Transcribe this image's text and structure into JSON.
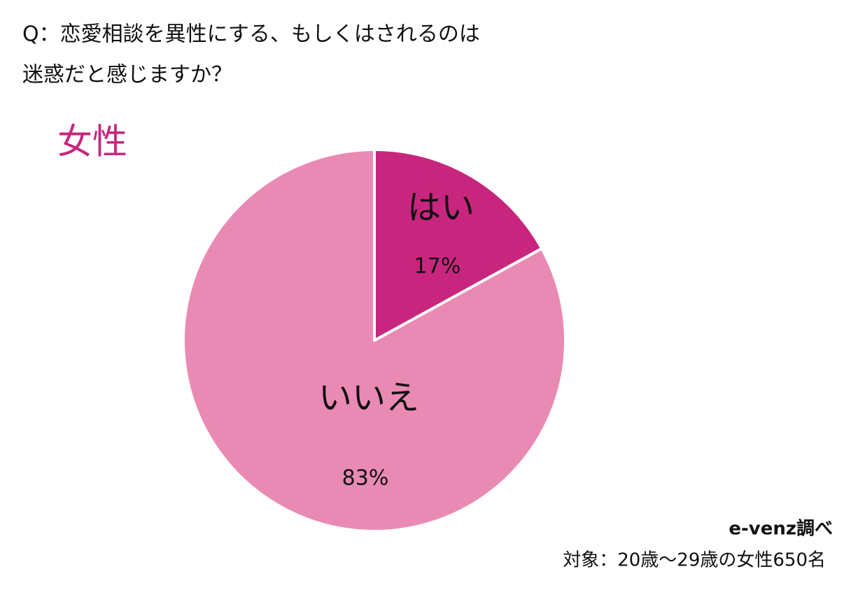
{
  "chart_data": {
    "type": "pie",
    "title": [
      "Q：恋愛相談を異性にする、もしくはされるのは",
      "迷惑だと感じますか？"
    ],
    "subtitle": "女性",
    "categories": [
      "はい",
      "いいえ"
    ],
    "values": [
      17,
      83
    ],
    "value_labels": [
      "17%",
      "83%"
    ],
    "colors": [
      "#c8267e",
      "#e98ab4"
    ],
    "source": "e-venz調べ",
    "note": "対象：20歳〜29歳の女性650名"
  }
}
